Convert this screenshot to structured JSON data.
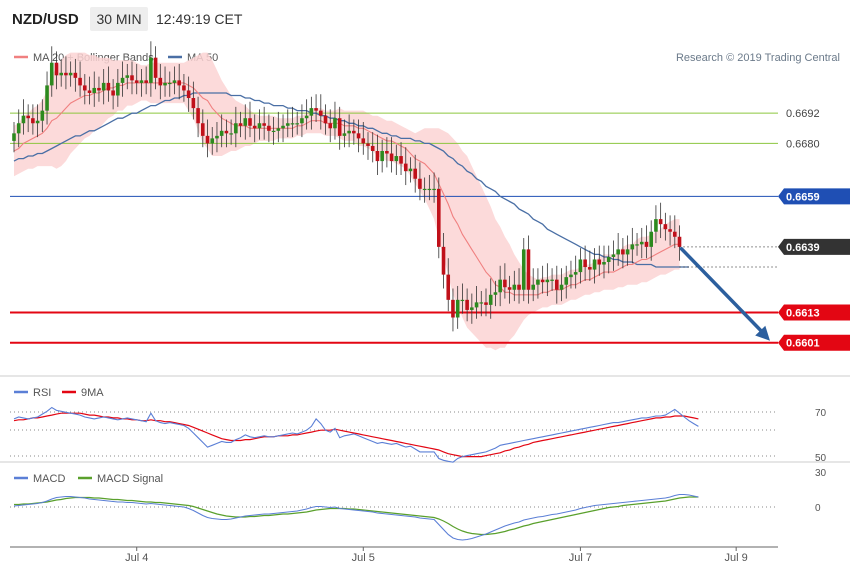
{
  "header": {
    "symbol": "NZD/USD",
    "timeframe": "30 MIN",
    "time": "12:49:19 CET"
  },
  "legend": {
    "ma20_label": "MA 20 + Bollinger Bands",
    "ma50_label": "MA 50",
    "copyright": "Research © 2019 Trading Central"
  },
  "colors": {
    "bull": "#2d8a1f",
    "bear": "#c0101a",
    "ma20": "#f08080",
    "ma50": "#4a6fa5",
    "band": "#fbd3d3",
    "green_level": "#8cc63f",
    "blue_level": "#1f4fb4",
    "red_level": "#e30613",
    "arrow": "#2c5f9e",
    "rsi": "#5b7fd6",
    "rsi_ma": "#e30613",
    "macd": "#5b7fd6",
    "macd_signal": "#5aa02c"
  },
  "levels": {
    "green": [
      {
        "value": 0.6692,
        "label": "0.6692"
      },
      {
        "value": 0.668,
        "label": "0.6680"
      }
    ],
    "blue": {
      "value": 0.6659,
      "label": "0.6659"
    },
    "current": {
      "value": 0.6639,
      "label": "0.6639"
    },
    "red": [
      {
        "value": 0.6613,
        "label": "0.6613"
      },
      {
        "value": 0.6601,
        "label": "0.6601"
      }
    ]
  },
  "rsi_panel": {
    "legend_rsi": "RSI",
    "legend_ma": "9MA",
    "levels": [
      "70",
      "50",
      "30"
    ]
  },
  "macd_panel": {
    "legend_macd": "MACD",
    "legend_signal": "MACD Signal",
    "zero_label": "0"
  },
  "chart_data": {
    "type": "candlestick",
    "y_range": [
      0.6589,
      0.6721
    ],
    "x_labels": [
      {
        "label": "Jul 4",
        "index": 26
      },
      {
        "label": "Jul 5",
        "index": 74
      },
      {
        "label": "Jul 7",
        "index": 120
      },
      {
        "label": "Jul 9",
        "index": 153
      }
    ],
    "forecast_arrow": {
      "from": 0.6639,
      "to": 0.6601
    },
    "closes": [
      0.6684,
      0.6688,
      0.6691,
      0.669,
      0.6688,
      0.6689,
      0.6693,
      0.6703,
      0.6712,
      0.6707,
      0.6708,
      0.6707,
      0.6708,
      0.6706,
      0.6703,
      0.6701,
      0.67,
      0.6702,
      0.6701,
      0.6704,
      0.6701,
      0.6699,
      0.6704,
      0.6706,
      0.6707,
      0.6705,
      0.6704,
      0.6705,
      0.6704,
      0.6714,
      0.6706,
      0.6703,
      0.6704,
      0.6704,
      0.6705,
      0.6703,
      0.6701,
      0.6698,
      0.6694,
      0.6688,
      0.6683,
      0.668,
      0.6682,
      0.6683,
      0.6685,
      0.6684,
      0.6684,
      0.6688,
      0.6687,
      0.669,
      0.6687,
      0.6686,
      0.6688,
      0.6687,
      0.6685,
      0.6685,
      0.6686,
      0.6687,
      0.6688,
      0.6688,
      0.6688,
      0.669,
      0.6691,
      0.6694,
      0.6693,
      0.6691,
      0.6688,
      0.6686,
      0.669,
      0.6683,
      0.6684,
      0.6685,
      0.6684,
      0.6682,
      0.668,
      0.6679,
      0.6677,
      0.6673,
      0.6677,
      0.6676,
      0.6673,
      0.6675,
      0.6672,
      0.6669,
      0.667,
      0.6666,
      0.6662,
      0.6662,
      0.6662,
      0.6662,
      0.6639,
      0.6628,
      0.6618,
      0.6611,
      0.6618,
      0.6618,
      0.6614,
      0.6615,
      0.6617,
      0.6617,
      0.6616,
      0.662,
      0.6621,
      0.6626,
      0.6623,
      0.6622,
      0.6624,
      0.6622,
      0.6638,
      0.6622,
      0.6624,
      0.6626,
      0.6625,
      0.6626,
      0.6626,
      0.6622,
      0.6624,
      0.6627,
      0.6628,
      0.6629,
      0.6634,
      0.6631,
      0.663,
      0.6634,
      0.6632,
      0.6633,
      0.6635,
      0.6636,
      0.6638,
      0.6636,
      0.6638,
      0.664,
      0.664,
      0.6641,
      0.6639,
      0.6645,
      0.665,
      0.6648,
      0.6646,
      0.6645,
      0.6643,
      0.6639
    ],
    "ma20": [
      0.6677,
      0.6678,
      0.668,
      0.6681,
      0.6682,
      0.6683,
      0.6684,
      0.6686,
      0.6689,
      0.669,
      0.6692,
      0.6694,
      0.6696,
      0.6697,
      0.6698,
      0.6699,
      0.6699,
      0.67,
      0.67,
      0.6701,
      0.6702,
      0.6702,
      0.6703,
      0.6703,
      0.6704,
      0.6704,
      0.6704,
      0.6704,
      0.6704,
      0.6704,
      0.6704,
      0.6704,
      0.6704,
      0.6704,
      0.6704,
      0.6704,
      0.6704,
      0.6703,
      0.6702,
      0.67,
      0.6698,
      0.6697,
      0.6694,
      0.6692,
      0.669,
      0.6689,
      0.6688,
      0.6687,
      0.6687,
      0.6687,
      0.6686,
      0.6686,
      0.6686,
      0.6686,
      0.6686,
      0.6686,
      0.6686,
      0.6686,
      0.6686,
      0.6686,
      0.6687,
      0.6687,
      0.6688,
      0.6689,
      0.6689,
      0.6689,
      0.6688,
      0.6688,
      0.6688,
      0.6688,
      0.6687,
      0.6687,
      0.6687,
      0.6686,
      0.6686,
      0.6685,
      0.6684,
      0.6683,
      0.6682,
      0.6681,
      0.6681,
      0.668,
      0.6679,
      0.6678,
      0.6676,
      0.6674,
      0.6673,
      0.6672,
      0.667,
      0.6668,
      0.6664,
      0.666,
      0.6656,
      0.6651,
      0.6648,
      0.6644,
      0.6641,
      0.6638,
      0.6635,
      0.6632,
      0.6629,
      0.6627,
      0.6624,
      0.6623,
      0.6621,
      0.6621,
      0.662,
      0.662,
      0.662,
      0.662,
      0.662,
      0.662,
      0.6621,
      0.6621,
      0.6622,
      0.6622,
      0.6622,
      0.6623,
      0.6624,
      0.6624,
      0.6625,
      0.6626,
      0.6626,
      0.6627,
      0.6628,
      0.6629,
      0.6629,
      0.6629,
      0.663,
      0.6631,
      0.6632,
      0.6632,
      0.6633,
      0.6634,
      0.6634,
      0.6635,
      0.6636,
      0.6637,
      0.6638,
      0.6639,
      0.664,
      0.664
    ],
    "ma50": [
      0.6673,
      0.6674,
      0.6674,
      0.6675,
      0.6675,
      0.6676,
      0.6676,
      0.6677,
      0.6678,
      0.6679,
      0.668,
      0.6681,
      0.6682,
      0.6683,
      0.6683,
      0.6684,
      0.6685,
      0.6685,
      0.6686,
      0.6687,
      0.6688,
      0.6689,
      0.669,
      0.669,
      0.6691,
      0.6692,
      0.6692,
      0.6693,
      0.6694,
      0.6695,
      0.6695,
      0.6696,
      0.6697,
      0.6697,
      0.6698,
      0.6698,
      0.6699,
      0.6699,
      0.67,
      0.67,
      0.67,
      0.67,
      0.67,
      0.67,
      0.67,
      0.67,
      0.6699,
      0.6699,
      0.6699,
      0.6698,
      0.6698,
      0.6697,
      0.6697,
      0.6696,
      0.6696,
      0.6695,
      0.6695,
      0.6695,
      0.6694,
      0.6694,
      0.6693,
      0.6693,
      0.6693,
      0.6692,
      0.6692,
      0.6691,
      0.6691,
      0.669,
      0.669,
      0.6689,
      0.6689,
      0.6688,
      0.6688,
      0.6687,
      0.6687,
      0.6686,
      0.6686,
      0.6685,
      0.6684,
      0.6684,
      0.6683,
      0.6683,
      0.6682,
      0.6682,
      0.6682,
      0.6681,
      0.6681,
      0.668,
      0.668,
      0.6679,
      0.6678,
      0.6677,
      0.6675,
      0.6674,
      0.6672,
      0.6671,
      0.6669,
      0.6668,
      0.6666,
      0.6665,
      0.6663,
      0.6662,
      0.6661,
      0.6659,
      0.6658,
      0.6657,
      0.6656,
      0.6654,
      0.6653,
      0.6652,
      0.665,
      0.6649,
      0.6648,
      0.6646,
      0.6645,
      0.6644,
      0.6643,
      0.6642,
      0.6641,
      0.664,
      0.6639,
      0.6638,
      0.6637,
      0.6636,
      0.6636,
      0.6635,
      0.6635,
      0.6634,
      0.6634,
      0.6633,
      0.6633,
      0.6633,
      0.6632,
      0.6632,
      0.6632,
      0.6632,
      0.6631,
      0.6631,
      0.6631,
      0.6631,
      0.6631,
      0.6631,
      0.6631,
      0.6631
    ],
    "band_width": [
      0.001,
      0.001,
      0.0011,
      0.0011,
      0.0012,
      0.0012,
      0.0013,
      0.0015,
      0.0018,
      0.002,
      0.0021,
      0.0021,
      0.002,
      0.0019,
      0.0018,
      0.0017,
      0.0016,
      0.0015,
      0.0014,
      0.0013,
      0.0012,
      0.0011,
      0.001,
      0.001,
      0.0009,
      0.0009,
      0.0008,
      0.0007,
      0.0007,
      0.0008,
      0.0008,
      0.0008,
      0.0008,
      0.0008,
      0.0008,
      0.0008,
      0.0008,
      0.001,
      0.0012,
      0.0015,
      0.0018,
      0.0019,
      0.0019,
      0.0017,
      0.0015,
      0.0013,
      0.0011,
      0.001,
      0.0009,
      0.0008,
      0.0007,
      0.0006,
      0.0005,
      0.0005,
      0.0005,
      0.0005,
      0.0004,
      0.0004,
      0.0004,
      0.0004,
      0.0004,
      0.0004,
      0.0004,
      0.0005,
      0.0005,
      0.0005,
      0.0005,
      0.0005,
      0.0005,
      0.0006,
      0.0006,
      0.0006,
      0.0006,
      0.0007,
      0.0007,
      0.0007,
      0.0007,
      0.0008,
      0.0008,
      0.0008,
      0.0008,
      0.0008,
      0.0008,
      0.0008,
      0.0009,
      0.001,
      0.0012,
      0.0014,
      0.0016,
      0.0018,
      0.0022,
      0.0025,
      0.0028,
      0.0031,
      0.0032,
      0.0033,
      0.0034,
      0.0033,
      0.0032,
      0.0031,
      0.003,
      0.0028,
      0.0026,
      0.0024,
      0.0022,
      0.0019,
      0.0016,
      0.0013,
      0.001,
      0.0008,
      0.0007,
      0.0006,
      0.0006,
      0.0006,
      0.0006,
      0.0006,
      0.0006,
      0.0006,
      0.0006,
      0.0006,
      0.0006,
      0.0006,
      0.0006,
      0.0006,
      0.0007,
      0.0007,
      0.0007,
      0.0007,
      0.0007,
      0.0008,
      0.0008,
      0.0008,
      0.0009,
      0.0009,
      0.0009,
      0.0009,
      0.0009,
      0.0009,
      0.001,
      0.001,
      0.001,
      0.001,
      0.001,
      0.001
    ],
    "rsi": [
      60,
      62,
      61,
      60,
      61,
      62,
      65,
      68,
      72,
      69,
      68,
      67,
      66,
      65,
      64,
      62,
      61,
      60,
      61,
      62,
      61,
      60,
      59,
      60,
      61,
      60,
      59,
      58,
      57,
      66,
      58,
      56,
      55,
      56,
      55,
      54,
      53,
      50,
      45,
      40,
      35,
      30,
      32,
      34,
      36,
      35,
      35,
      38,
      40,
      43,
      41,
      40,
      41,
      42,
      41,
      41,
      42,
      43,
      44,
      45,
      44,
      46,
      48,
      52,
      60,
      55,
      48,
      46,
      50,
      40,
      42,
      43,
      44,
      42,
      40,
      38,
      36,
      34,
      35,
      34,
      33,
      34,
      32,
      30,
      31,
      28,
      25,
      25,
      25,
      25,
      18,
      16,
      15,
      14,
      18,
      20,
      21,
      22,
      23,
      24,
      25,
      27,
      29,
      32,
      33,
      34,
      35,
      36,
      37,
      38,
      39,
      40,
      41,
      42,
      43,
      44,
      45,
      46,
      47,
      48,
      49,
      50,
      51,
      52,
      53,
      54,
      55,
      56,
      56,
      57,
      58,
      59,
      60,
      61,
      61,
      62,
      63,
      63,
      64,
      67,
      70,
      66,
      62,
      58,
      55,
      52
    ],
    "rsi_ma": [
      58,
      59,
      59,
      60,
      61,
      61,
      62,
      63,
      64,
      65,
      66,
      66,
      66,
      66,
      66,
      65,
      64,
      64,
      63,
      62,
      62,
      61,
      61,
      60,
      60,
      59,
      59,
      58,
      58,
      59,
      58,
      58,
      57,
      57,
      56,
      55,
      54,
      53,
      51,
      49,
      47,
      45,
      43,
      41,
      39,
      38,
      37,
      37,
      37,
      38,
      38,
      39,
      40,
      41,
      41,
      41,
      42,
      42,
      42,
      43,
      43,
      44,
      45,
      46,
      47,
      48,
      48,
      48,
      49,
      48,
      47,
      46,
      45,
      44,
      43,
      42,
      41,
      40,
      39,
      38,
      37,
      36,
      35,
      34,
      33,
      32,
      31,
      30,
      29,
      28,
      27,
      25,
      23,
      22,
      21,
      20,
      20,
      20,
      20,
      20,
      21,
      22,
      23,
      24,
      26,
      27,
      29,
      30,
      32,
      33,
      35,
      36,
      37,
      38,
      39,
      40,
      41,
      42,
      43,
      44,
      45,
      46,
      47,
      48,
      49,
      50,
      51,
      52,
      53,
      54,
      55,
      56,
      57,
      58,
      59,
      60,
      61,
      61,
      62,
      62,
      63,
      63,
      63,
      62,
      61,
      60
    ],
    "macd": [
      0.2,
      0.3,
      0.4,
      0.5,
      0.6,
      0.7,
      0.9,
      1.2,
      1.6,
      1.9,
      2.0,
      2.1,
      2.1,
      2.0,
      1.9,
      1.8,
      1.6,
      1.5,
      1.4,
      1.3,
      1.2,
      1.1,
      1.0,
      1.0,
      0.9,
      0.9,
      0.8,
      0.7,
      0.6,
      0.7,
      0.6,
      0.5,
      0.4,
      0.3,
      0.2,
      0.1,
      0.0,
      -0.3,
      -0.7,
      -1.2,
      -1.7,
      -2.1,
      -2.3,
      -2.4,
      -2.5,
      -2.5,
      -2.4,
      -2.2,
      -2.0,
      -1.8,
      -1.7,
      -1.6,
      -1.5,
      -1.4,
      -1.4,
      -1.3,
      -1.2,
      -1.1,
      -1.0,
      -0.9,
      -0.8,
      -0.6,
      -0.4,
      -0.1,
      0.1,
      0.1,
      0.0,
      -0.1,
      0.0,
      -0.3,
      -0.4,
      -0.5,
      -0.6,
      -0.7,
      -0.8,
      -0.9,
      -1.0,
      -1.2,
      -1.3,
      -1.4,
      -1.5,
      -1.6,
      -1.7,
      -1.8,
      -1.9,
      -2.0,
      -2.2,
      -2.3,
      -2.4,
      -2.5,
      -3.5,
      -4.5,
      -5.5,
      -6.2,
      -6.5,
      -6.6,
      -6.5,
      -6.3,
      -6.0,
      -5.7,
      -5.4,
      -5.0,
      -4.6,
      -4.2,
      -3.8,
      -3.5,
      -3.2,
      -3.0,
      -2.6,
      -2.4,
      -2.2,
      -2.0,
      -1.9,
      -1.7,
      -1.5,
      -1.4,
      -1.2,
      -1.0,
      -0.8,
      -0.6,
      -0.3,
      -0.1,
      0.1,
      0.3,
      0.4,
      0.5,
      0.6,
      0.7,
      0.8,
      0.9,
      1.0,
      1.1,
      1.2,
      1.3,
      1.4,
      1.5,
      1.6,
      1.7,
      1.8,
      2.0,
      2.3,
      2.5,
      2.5,
      2.4,
      2.2,
      2.0
    ],
    "macd_signal": [
      0.5,
      0.5,
      0.6,
      0.6,
      0.7,
      0.8,
      0.9,
      1.0,
      1.2,
      1.4,
      1.5,
      1.7,
      1.8,
      1.9,
      1.9,
      1.9,
      1.9,
      1.8,
      1.8,
      1.7,
      1.6,
      1.5,
      1.5,
      1.4,
      1.3,
      1.3,
      1.2,
      1.1,
      1.0,
      1.0,
      0.9,
      0.9,
      0.8,
      0.7,
      0.6,
      0.5,
      0.4,
      0.3,
      0.1,
      -0.2,
      -0.5,
      -0.8,
      -1.1,
      -1.4,
      -1.6,
      -1.8,
      -1.9,
      -2.0,
      -2.0,
      -2.0,
      -1.9,
      -1.9,
      -1.8,
      -1.7,
      -1.7,
      -1.6,
      -1.5,
      -1.4,
      -1.4,
      -1.3,
      -1.2,
      -1.1,
      -1.0,
      -0.8,
      -0.6,
      -0.5,
      -0.4,
      -0.3,
      -0.3,
      -0.3,
      -0.3,
      -0.4,
      -0.4,
      -0.5,
      -0.6,
      -0.7,
      -0.8,
      -0.9,
      -1.0,
      -1.1,
      -1.2,
      -1.3,
      -1.4,
      -1.5,
      -1.6,
      -1.7,
      -1.8,
      -1.9,
      -2.0,
      -2.1,
      -2.4,
      -2.8,
      -3.3,
      -3.9,
      -4.4,
      -4.8,
      -5.1,
      -5.3,
      -5.4,
      -5.5,
      -5.5,
      -5.4,
      -5.3,
      -5.1,
      -4.9,
      -4.6,
      -4.4,
      -4.1,
      -3.8,
      -3.6,
      -3.3,
      -3.1,
      -2.9,
      -2.7,
      -2.5,
      -2.3,
      -2.1,
      -1.9,
      -1.7,
      -1.5,
      -1.3,
      -1.1,
      -0.9,
      -0.7,
      -0.5,
      -0.3,
      -0.1,
      0.0,
      0.1,
      0.3,
      0.4,
      0.5,
      0.6,
      0.7,
      0.8,
      0.9,
      1.0,
      1.1,
      1.2,
      1.4,
      1.6,
      1.8,
      1.9,
      2.0,
      2.0,
      2.0
    ]
  }
}
